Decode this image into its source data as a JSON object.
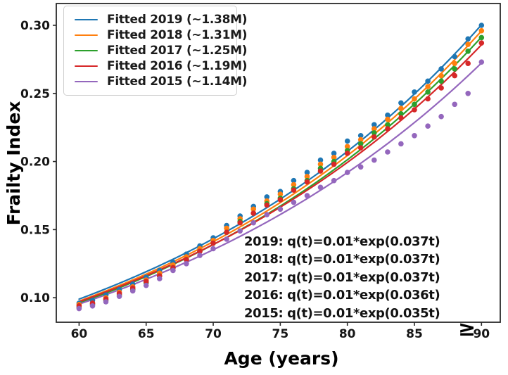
{
  "chart_data": {
    "type": "scatter",
    "title": "",
    "xlabel": "Age (years)",
    "ylabel": "Frailty Index",
    "x_ticks": [
      60,
      65,
      70,
      75,
      80,
      85,
      90
    ],
    "x_tick_labels": [
      "60",
      "65",
      "70",
      "75",
      "80",
      "85",
      "90"
    ],
    "y_ticks": [
      0.1,
      0.15,
      0.2,
      0.25,
      0.3
    ],
    "y_tick_labels": [
      "0.10",
      "0.15",
      "0.20",
      "0.25",
      "0.30"
    ],
    "x_axis_overflow_symbol": "≥",
    "xlim": [
      58.3,
      91.4
    ],
    "ylim": [
      0.082,
      0.316
    ],
    "grid": false,
    "legend_position": "upper-left",
    "ages": [
      60,
      61,
      62,
      63,
      64,
      65,
      66,
      67,
      68,
      69,
      70,
      71,
      72,
      73,
      74,
      75,
      76,
      77,
      78,
      79,
      80,
      81,
      82,
      83,
      84,
      85,
      86,
      87,
      88,
      89,
      90
    ],
    "series": [
      {
        "name": "Fitted 2019 (~1.38M)",
        "year": "2019",
        "color": "#1f77b4",
        "equation": "2019: q(t)=0.01*exp(0.037t)",
        "fit": {
          "a": 0.01075,
          "b": 0.037
        },
        "values": [
          0.096,
          0.098,
          0.102,
          0.106,
          0.11,
          0.115,
          0.12,
          0.126,
          0.132,
          0.138,
          0.144,
          0.153,
          0.16,
          0.167,
          0.174,
          0.178,
          0.186,
          0.192,
          0.201,
          0.206,
          0.215,
          0.219,
          0.227,
          0.234,
          0.243,
          0.251,
          0.259,
          0.268,
          0.277,
          0.29,
          0.3
        ]
      },
      {
        "name": "Fitted 2018 (~1.31M)",
        "year": "2018",
        "color": "#ff7f0e",
        "equation": "2018: q(t)=0.01*exp(0.037t)",
        "fit": {
          "a": 0.01059,
          "b": 0.037
        },
        "values": [
          0.095,
          0.096,
          0.1,
          0.104,
          0.108,
          0.113,
          0.118,
          0.124,
          0.13,
          0.136,
          0.142,
          0.151,
          0.158,
          0.165,
          0.171,
          0.176,
          0.183,
          0.189,
          0.198,
          0.203,
          0.211,
          0.216,
          0.224,
          0.231,
          0.239,
          0.246,
          0.255,
          0.263,
          0.272,
          0.286,
          0.296
        ]
      },
      {
        "name": "Fitted 2017 (~1.25M)",
        "year": "2017",
        "color": "#2ca02c",
        "equation": "2017: q(t)=0.01*exp(0.037t)",
        "fit": {
          "a": 0.01043,
          "b": 0.037
        },
        "values": [
          0.093,
          0.095,
          0.098,
          0.102,
          0.106,
          0.111,
          0.116,
          0.122,
          0.128,
          0.134,
          0.14,
          0.148,
          0.156,
          0.162,
          0.169,
          0.173,
          0.18,
          0.186,
          0.195,
          0.2,
          0.208,
          0.213,
          0.221,
          0.227,
          0.235,
          0.242,
          0.251,
          0.259,
          0.268,
          0.281,
          0.291
        ]
      },
      {
        "name": "Fitted 2016 (~1.19M)",
        "year": "2016",
        "color": "#d62728",
        "equation": "2016: q(t)=0.01*exp(0.036t)",
        "fit": {
          "a": 0.01119,
          "b": 0.036
        },
        "values": [
          0.094,
          0.096,
          0.099,
          0.103,
          0.107,
          0.112,
          0.116,
          0.122,
          0.128,
          0.134,
          0.14,
          0.148,
          0.155,
          0.162,
          0.168,
          0.172,
          0.179,
          0.185,
          0.193,
          0.198,
          0.206,
          0.21,
          0.218,
          0.224,
          0.232,
          0.238,
          0.246,
          0.254,
          0.263,
          0.272,
          0.287
        ]
      },
      {
        "name": "Fitted 2015 (~1.14M)",
        "year": "2015",
        "color": "#9467bd",
        "equation": "2015: q(t)=0.01*exp(0.035t)",
        "fit": {
          "a": 0.01167,
          "b": 0.035
        },
        "values": [
          0.092,
          0.094,
          0.097,
          0.101,
          0.105,
          0.109,
          0.114,
          0.12,
          0.125,
          0.131,
          0.136,
          0.143,
          0.149,
          0.155,
          0.161,
          0.165,
          0.17,
          0.175,
          0.181,
          0.186,
          0.192,
          0.196,
          0.201,
          0.207,
          0.213,
          0.219,
          0.226,
          0.233,
          0.242,
          0.25,
          0.273
        ]
      }
    ]
  }
}
